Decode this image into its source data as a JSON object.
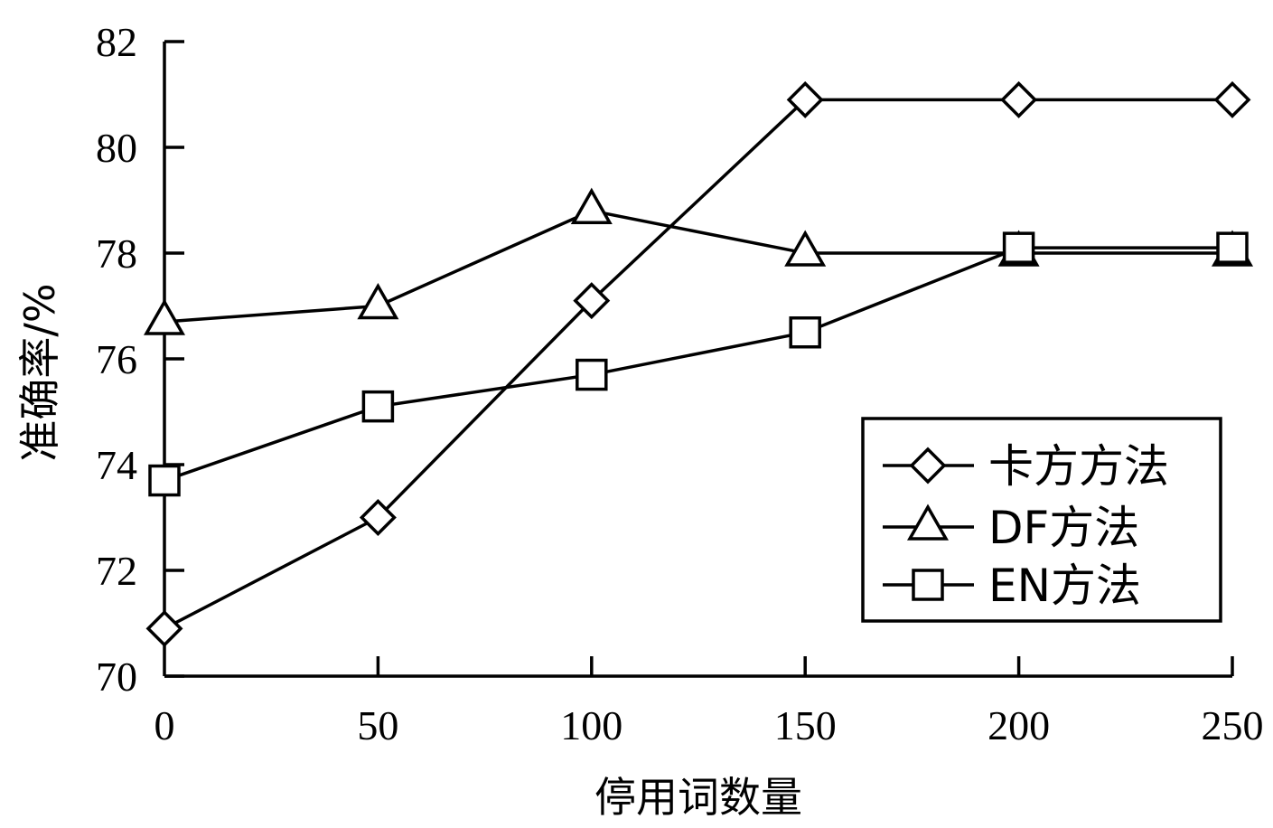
{
  "chart_data": {
    "type": "line",
    "title": "",
    "xlabel": "停用词数量",
    "ylabel": "准确率/%",
    "x": [
      0,
      50,
      100,
      150,
      200,
      250
    ],
    "xlim": [
      0,
      250
    ],
    "ylim": [
      70,
      82
    ],
    "xticks": [
      "0",
      "50",
      "100",
      "150",
      "200",
      "250"
    ],
    "yticks": [
      "70",
      "72",
      "74",
      "76",
      "78",
      "80",
      "82"
    ],
    "grid": false,
    "legend_position": "lower-right",
    "series": [
      {
        "name": "卡方方法",
        "marker": "diamond",
        "values": [
          70.9,
          73.0,
          77.1,
          80.9,
          80.9,
          80.9
        ]
      },
      {
        "name": "DF方法",
        "marker": "triangle",
        "values": [
          76.7,
          77.0,
          78.8,
          78.0,
          78.0,
          78.0
        ]
      },
      {
        "name": "EN方法",
        "marker": "square",
        "values": [
          73.7,
          75.1,
          75.7,
          76.5,
          78.1,
          78.1
        ]
      }
    ]
  }
}
